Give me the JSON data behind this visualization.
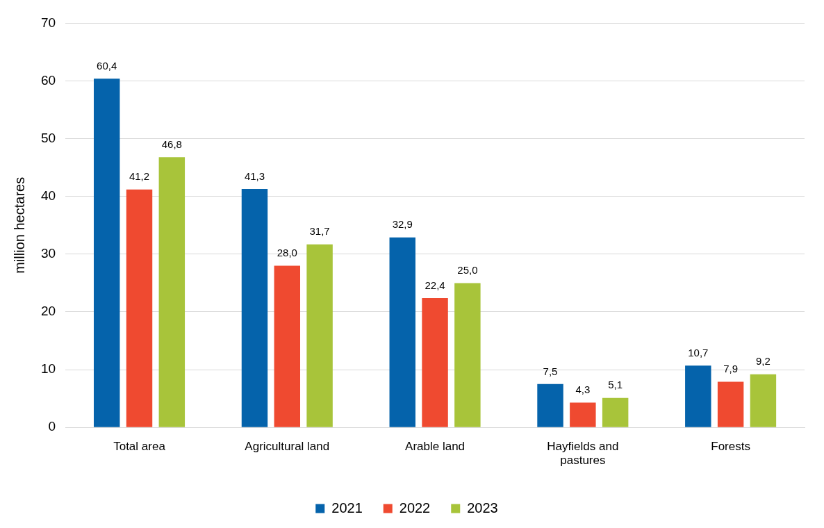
{
  "chart_data": {
    "type": "bar",
    "ylabel": "million hectares",
    "categories": [
      "Total area",
      "Agricultural land",
      "Arable land",
      "Hayfields and pastures",
      "Forests"
    ],
    "series": [
      {
        "name": "2021",
        "color": "#0563ab",
        "values": [
          60.4,
          41.3,
          32.9,
          7.5,
          10.7
        ],
        "value_labels": [
          "60,4",
          "41,3",
          "32,9",
          "7,5",
          "10,7"
        ]
      },
      {
        "name": "2022",
        "color": "#ef4a30",
        "values": [
          41.2,
          28.0,
          22.4,
          4.3,
          7.9
        ],
        "value_labels": [
          "41,2",
          "28,0",
          "22,4",
          "4,3",
          "7,9"
        ]
      },
      {
        "name": "2023",
        "color": "#a8c43a",
        "values": [
          46.8,
          31.7,
          25.0,
          5.1,
          9.2
        ],
        "value_labels": [
          "46,8",
          "31,7",
          "25,0",
          "5,1",
          "9,2"
        ]
      }
    ],
    "ylim": [
      0,
      70
    ],
    "yticks": [
      0,
      10,
      20,
      30,
      40,
      50,
      60,
      70
    ],
    "grid": "y",
    "legend": "bottom"
  }
}
